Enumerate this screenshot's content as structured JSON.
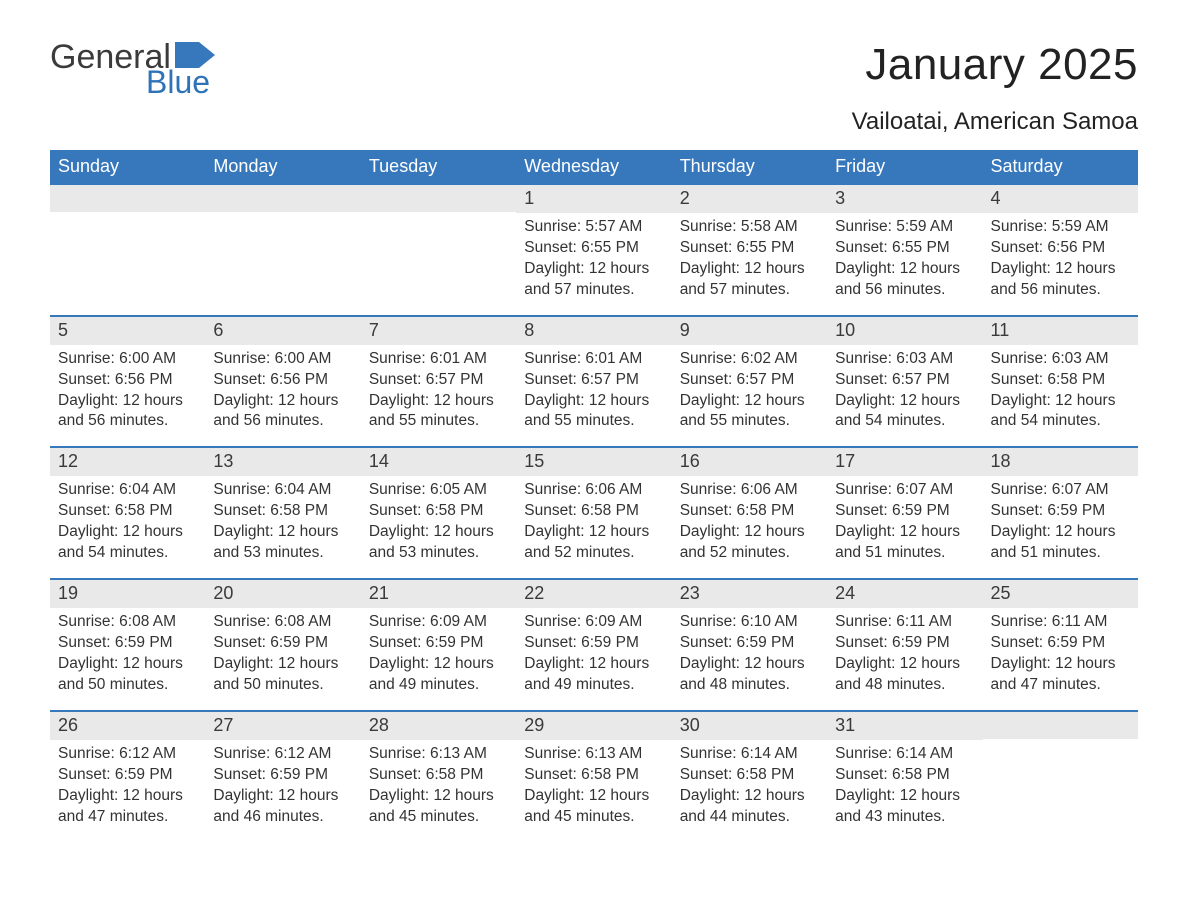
{
  "meta": {
    "type": "calendar-table",
    "columns": 7,
    "rows": 5,
    "background_color": "#ffffff",
    "font_family": "Arial",
    "header_bg": "#3778bd",
    "header_text_color": "#ffffff",
    "header_fontsize": 18,
    "daynum_bg": "#e9e9e9",
    "daynum_text_color": "#3a3a3a",
    "daynum_fontsize": 18,
    "body_text_color": "#333333",
    "body_fontsize": 15.5,
    "week_divider_color": "#3778bd",
    "week_divider_width": 2
  },
  "logo": {
    "text_general": "General",
    "text_blue": "Blue",
    "general_color": "#3b3b3b",
    "blue_color": "#2e73b8",
    "shape_color": "#3778bd"
  },
  "title": "January 2025",
  "subtitle": "Vailoatai, American Samoa",
  "title_fontsize": 44,
  "subtitle_fontsize": 24,
  "day_headers": [
    "Sunday",
    "Monday",
    "Tuesday",
    "Wednesday",
    "Thursday",
    "Friday",
    "Saturday"
  ],
  "weeks": [
    [
      {
        "n": "",
        "l1": "",
        "l2": "",
        "l3": "",
        "l4": ""
      },
      {
        "n": "",
        "l1": "",
        "l2": "",
        "l3": "",
        "l4": ""
      },
      {
        "n": "",
        "l1": "",
        "l2": "",
        "l3": "",
        "l4": ""
      },
      {
        "n": "1",
        "l1": "Sunrise: 5:57 AM",
        "l2": "Sunset: 6:55 PM",
        "l3": "Daylight: 12 hours",
        "l4": "and 57 minutes."
      },
      {
        "n": "2",
        "l1": "Sunrise: 5:58 AM",
        "l2": "Sunset: 6:55 PM",
        "l3": "Daylight: 12 hours",
        "l4": "and 57 minutes."
      },
      {
        "n": "3",
        "l1": "Sunrise: 5:59 AM",
        "l2": "Sunset: 6:55 PM",
        "l3": "Daylight: 12 hours",
        "l4": "and 56 minutes."
      },
      {
        "n": "4",
        "l1": "Sunrise: 5:59 AM",
        "l2": "Sunset: 6:56 PM",
        "l3": "Daylight: 12 hours",
        "l4": "and 56 minutes."
      }
    ],
    [
      {
        "n": "5",
        "l1": "Sunrise: 6:00 AM",
        "l2": "Sunset: 6:56 PM",
        "l3": "Daylight: 12 hours",
        "l4": "and 56 minutes."
      },
      {
        "n": "6",
        "l1": "Sunrise: 6:00 AM",
        "l2": "Sunset: 6:56 PM",
        "l3": "Daylight: 12 hours",
        "l4": "and 56 minutes."
      },
      {
        "n": "7",
        "l1": "Sunrise: 6:01 AM",
        "l2": "Sunset: 6:57 PM",
        "l3": "Daylight: 12 hours",
        "l4": "and 55 minutes."
      },
      {
        "n": "8",
        "l1": "Sunrise: 6:01 AM",
        "l2": "Sunset: 6:57 PM",
        "l3": "Daylight: 12 hours",
        "l4": "and 55 minutes."
      },
      {
        "n": "9",
        "l1": "Sunrise: 6:02 AM",
        "l2": "Sunset: 6:57 PM",
        "l3": "Daylight: 12 hours",
        "l4": "and 55 minutes."
      },
      {
        "n": "10",
        "l1": "Sunrise: 6:03 AM",
        "l2": "Sunset: 6:57 PM",
        "l3": "Daylight: 12 hours",
        "l4": "and 54 minutes."
      },
      {
        "n": "11",
        "l1": "Sunrise: 6:03 AM",
        "l2": "Sunset: 6:58 PM",
        "l3": "Daylight: 12 hours",
        "l4": "and 54 minutes."
      }
    ],
    [
      {
        "n": "12",
        "l1": "Sunrise: 6:04 AM",
        "l2": "Sunset: 6:58 PM",
        "l3": "Daylight: 12 hours",
        "l4": "and 54 minutes."
      },
      {
        "n": "13",
        "l1": "Sunrise: 6:04 AM",
        "l2": "Sunset: 6:58 PM",
        "l3": "Daylight: 12 hours",
        "l4": "and 53 minutes."
      },
      {
        "n": "14",
        "l1": "Sunrise: 6:05 AM",
        "l2": "Sunset: 6:58 PM",
        "l3": "Daylight: 12 hours",
        "l4": "and 53 minutes."
      },
      {
        "n": "15",
        "l1": "Sunrise: 6:06 AM",
        "l2": "Sunset: 6:58 PM",
        "l3": "Daylight: 12 hours",
        "l4": "and 52 minutes."
      },
      {
        "n": "16",
        "l1": "Sunrise: 6:06 AM",
        "l2": "Sunset: 6:58 PM",
        "l3": "Daylight: 12 hours",
        "l4": "and 52 minutes."
      },
      {
        "n": "17",
        "l1": "Sunrise: 6:07 AM",
        "l2": "Sunset: 6:59 PM",
        "l3": "Daylight: 12 hours",
        "l4": "and 51 minutes."
      },
      {
        "n": "18",
        "l1": "Sunrise: 6:07 AM",
        "l2": "Sunset: 6:59 PM",
        "l3": "Daylight: 12 hours",
        "l4": "and 51 minutes."
      }
    ],
    [
      {
        "n": "19",
        "l1": "Sunrise: 6:08 AM",
        "l2": "Sunset: 6:59 PM",
        "l3": "Daylight: 12 hours",
        "l4": "and 50 minutes."
      },
      {
        "n": "20",
        "l1": "Sunrise: 6:08 AM",
        "l2": "Sunset: 6:59 PM",
        "l3": "Daylight: 12 hours",
        "l4": "and 50 minutes."
      },
      {
        "n": "21",
        "l1": "Sunrise: 6:09 AM",
        "l2": "Sunset: 6:59 PM",
        "l3": "Daylight: 12 hours",
        "l4": "and 49 minutes."
      },
      {
        "n": "22",
        "l1": "Sunrise: 6:09 AM",
        "l2": "Sunset: 6:59 PM",
        "l3": "Daylight: 12 hours",
        "l4": "and 49 minutes."
      },
      {
        "n": "23",
        "l1": "Sunrise: 6:10 AM",
        "l2": "Sunset: 6:59 PM",
        "l3": "Daylight: 12 hours",
        "l4": "and 48 minutes."
      },
      {
        "n": "24",
        "l1": "Sunrise: 6:11 AM",
        "l2": "Sunset: 6:59 PM",
        "l3": "Daylight: 12 hours",
        "l4": "and 48 minutes."
      },
      {
        "n": "25",
        "l1": "Sunrise: 6:11 AM",
        "l2": "Sunset: 6:59 PM",
        "l3": "Daylight: 12 hours",
        "l4": "and 47 minutes."
      }
    ],
    [
      {
        "n": "26",
        "l1": "Sunrise: 6:12 AM",
        "l2": "Sunset: 6:59 PM",
        "l3": "Daylight: 12 hours",
        "l4": "and 47 minutes."
      },
      {
        "n": "27",
        "l1": "Sunrise: 6:12 AM",
        "l2": "Sunset: 6:59 PM",
        "l3": "Daylight: 12 hours",
        "l4": "and 46 minutes."
      },
      {
        "n": "28",
        "l1": "Sunrise: 6:13 AM",
        "l2": "Sunset: 6:58 PM",
        "l3": "Daylight: 12 hours",
        "l4": "and 45 minutes."
      },
      {
        "n": "29",
        "l1": "Sunrise: 6:13 AM",
        "l2": "Sunset: 6:58 PM",
        "l3": "Daylight: 12 hours",
        "l4": "and 45 minutes."
      },
      {
        "n": "30",
        "l1": "Sunrise: 6:14 AM",
        "l2": "Sunset: 6:58 PM",
        "l3": "Daylight: 12 hours",
        "l4": "and 44 minutes."
      },
      {
        "n": "31",
        "l1": "Sunrise: 6:14 AM",
        "l2": "Sunset: 6:58 PM",
        "l3": "Daylight: 12 hours",
        "l4": "and 43 minutes."
      },
      {
        "n": "",
        "l1": "",
        "l2": "",
        "l3": "",
        "l4": ""
      }
    ]
  ]
}
